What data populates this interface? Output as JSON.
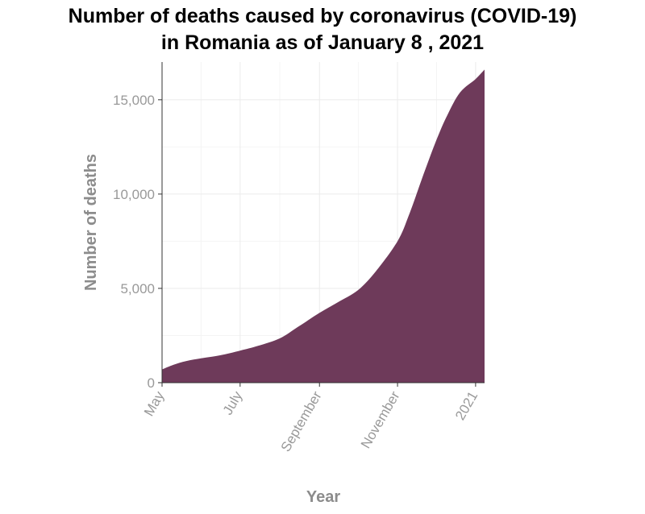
{
  "chart_data": {
    "type": "area",
    "title_line1": "Number of deaths caused by coronavirus (COVID-19)",
    "title_line2": "in Romania as of January 8 , 2021",
    "xlabel": "Year",
    "ylabel": "Number of deaths",
    "x_ticks": [
      "May",
      "July",
      "September",
      "November",
      "2021"
    ],
    "x_tick_dates": [
      "2020-05-01",
      "2020-07-01",
      "2020-09-01",
      "2020-11-01",
      "2021-01-01"
    ],
    "y_ticks": [
      0,
      5000,
      10000,
      15000
    ],
    "y_tick_labels": [
      "0",
      "5,000",
      "10,000",
      "15,000"
    ],
    "xlim": [
      "2020-05-01",
      "2021-01-08"
    ],
    "ylim": [
      0,
      17000
    ],
    "grid": true,
    "legend": "none",
    "series": [
      {
        "color": "#6e3a5a",
        "x": [
          "2020-05-01",
          "2020-05-10",
          "2020-05-20",
          "2020-06-01",
          "2020-06-15",
          "2020-07-01",
          "2020-07-15",
          "2020-08-01",
          "2020-08-15",
          "2020-09-01",
          "2020-09-15",
          "2020-10-01",
          "2020-10-15",
          "2020-11-01",
          "2020-11-10",
          "2020-11-20",
          "2020-12-01",
          "2020-12-10",
          "2020-12-20",
          "2021-01-01",
          "2021-01-08"
        ],
        "y": [
          700,
          950,
          1150,
          1300,
          1450,
          1700,
          1950,
          2350,
          2950,
          3700,
          4250,
          4900,
          5900,
          7500,
          8900,
          10800,
          12800,
          14200,
          15400,
          16100,
          16600
        ]
      }
    ]
  }
}
